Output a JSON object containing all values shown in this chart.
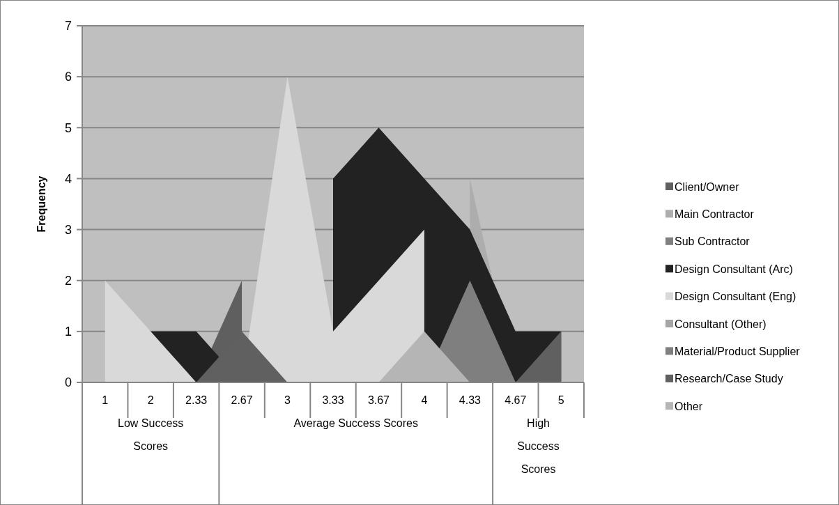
{
  "chart_data": {
    "type": "area",
    "ylabel": "Frequency",
    "categories": [
      "1",
      "2",
      "2.33",
      "2.67",
      "3",
      "3.33",
      "3.67",
      "4",
      "4.33",
      "4.67",
      "5"
    ],
    "annotations": [
      "Low Success Scores",
      "Average Success Scores",
      "High Success Scores"
    ],
    "series": [
      {
        "name": "Client/Owner",
        "color": "#5f5f5f",
        "values": [
          null,
          null,
          0,
          2,
          null,
          null,
          null,
          null,
          null,
          null,
          null
        ]
      },
      {
        "name": "Main Contractor",
        "color": "#adadad",
        "values": [
          null,
          null,
          null,
          null,
          null,
          null,
          null,
          null,
          4,
          0,
          null
        ]
      },
      {
        "name": "Sub Contractor",
        "color": "#808080",
        "values": [
          null,
          null,
          null,
          null,
          null,
          null,
          null,
          null,
          null,
          null,
          null
        ]
      },
      {
        "name": "Design Consultant (Arc)",
        "color": "#222222",
        "values": [
          null,
          1,
          1,
          0,
          null,
          4,
          5,
          4,
          3,
          1,
          1
        ]
      },
      {
        "name": "Design Consultant (Eng)",
        "color": "#d9d9d9",
        "values": [
          2,
          1,
          0,
          0,
          6,
          1,
          2,
          3,
          null,
          null,
          null
        ]
      },
      {
        "name": "Consultant (Other)",
        "color": "#a5a5a5",
        "values": [
          null,
          null,
          null,
          null,
          null,
          null,
          null,
          null,
          null,
          null,
          null
        ]
      },
      {
        "name": "Material/Product Supplier",
        "color": "#7f7f7f",
        "values": [
          null,
          null,
          null,
          null,
          null,
          null,
          null,
          0,
          2,
          0,
          null
        ]
      },
      {
        "name": "Research/Case Study",
        "color": "#606060",
        "values": [
          null,
          null,
          0,
          1,
          0,
          null,
          null,
          null,
          null,
          0,
          1
        ]
      },
      {
        "name": "Other",
        "color": "#b5b5b5",
        "values": [
          null,
          null,
          null,
          null,
          null,
          null,
          0,
          1,
          0,
          null,
          null
        ]
      }
    ],
    "ylim": [
      0,
      7
    ],
    "yticks": [
      0,
      1,
      2,
      3,
      4,
      5,
      6,
      7
    ],
    "grid": "y",
    "legend": "right"
  }
}
